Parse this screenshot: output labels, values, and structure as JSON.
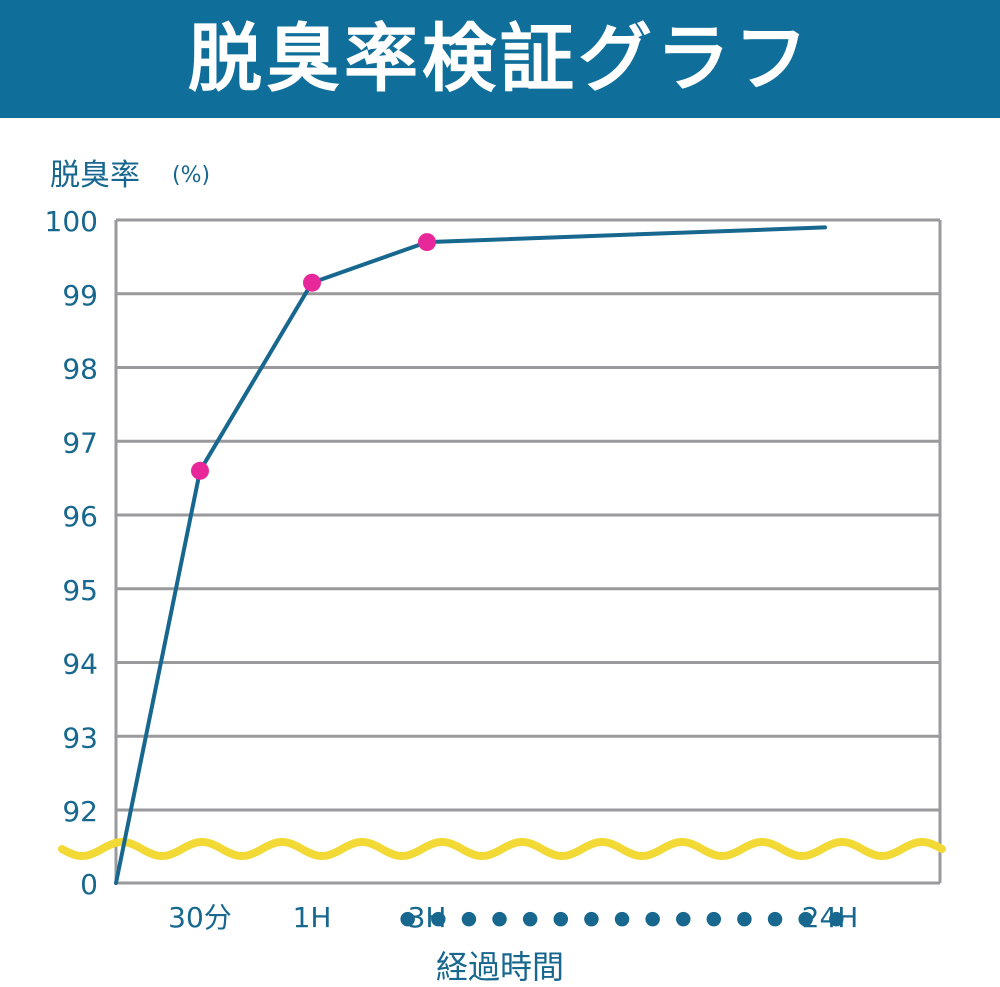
{
  "header": {
    "title": "脱臭率検証グラフ"
  },
  "chart_data": {
    "type": "line",
    "title": "脱臭率検証グラフ",
    "ylabel": "脱臭率",
    "yunit": "(%)",
    "xlabel": "経過時間",
    "y_ticks": [
      "100",
      "99",
      "98",
      "97",
      "96",
      "95",
      "94",
      "93",
      "92",
      "0"
    ],
    "y_tick_values": [
      100,
      99,
      98,
      97,
      96,
      95,
      94,
      93,
      92,
      0
    ],
    "axis_break": "between 0 and 92 (wavy line)",
    "x_tick_labels": [
      "30分",
      "1H",
      "3H",
      "24H"
    ],
    "x_ellipsis": "● ● ● ● ● ● ● ● ● ● ● ● ● ● ●",
    "grid": true,
    "series": [
      {
        "x": [
          "0",
          "30分",
          "1H",
          "3H",
          "24H"
        ],
        "values": [
          0,
          96.6,
          99.15,
          99.7,
          99.9
        ],
        "markers": [
          false,
          true,
          true,
          true,
          false
        ]
      }
    ],
    "colors": {
      "line": "#17678f",
      "marker": "#e8289a",
      "grid": "#9a9a9c",
      "axis_text": "#17678f",
      "break": "#f3d935",
      "banner": "#0f6f9a"
    }
  }
}
